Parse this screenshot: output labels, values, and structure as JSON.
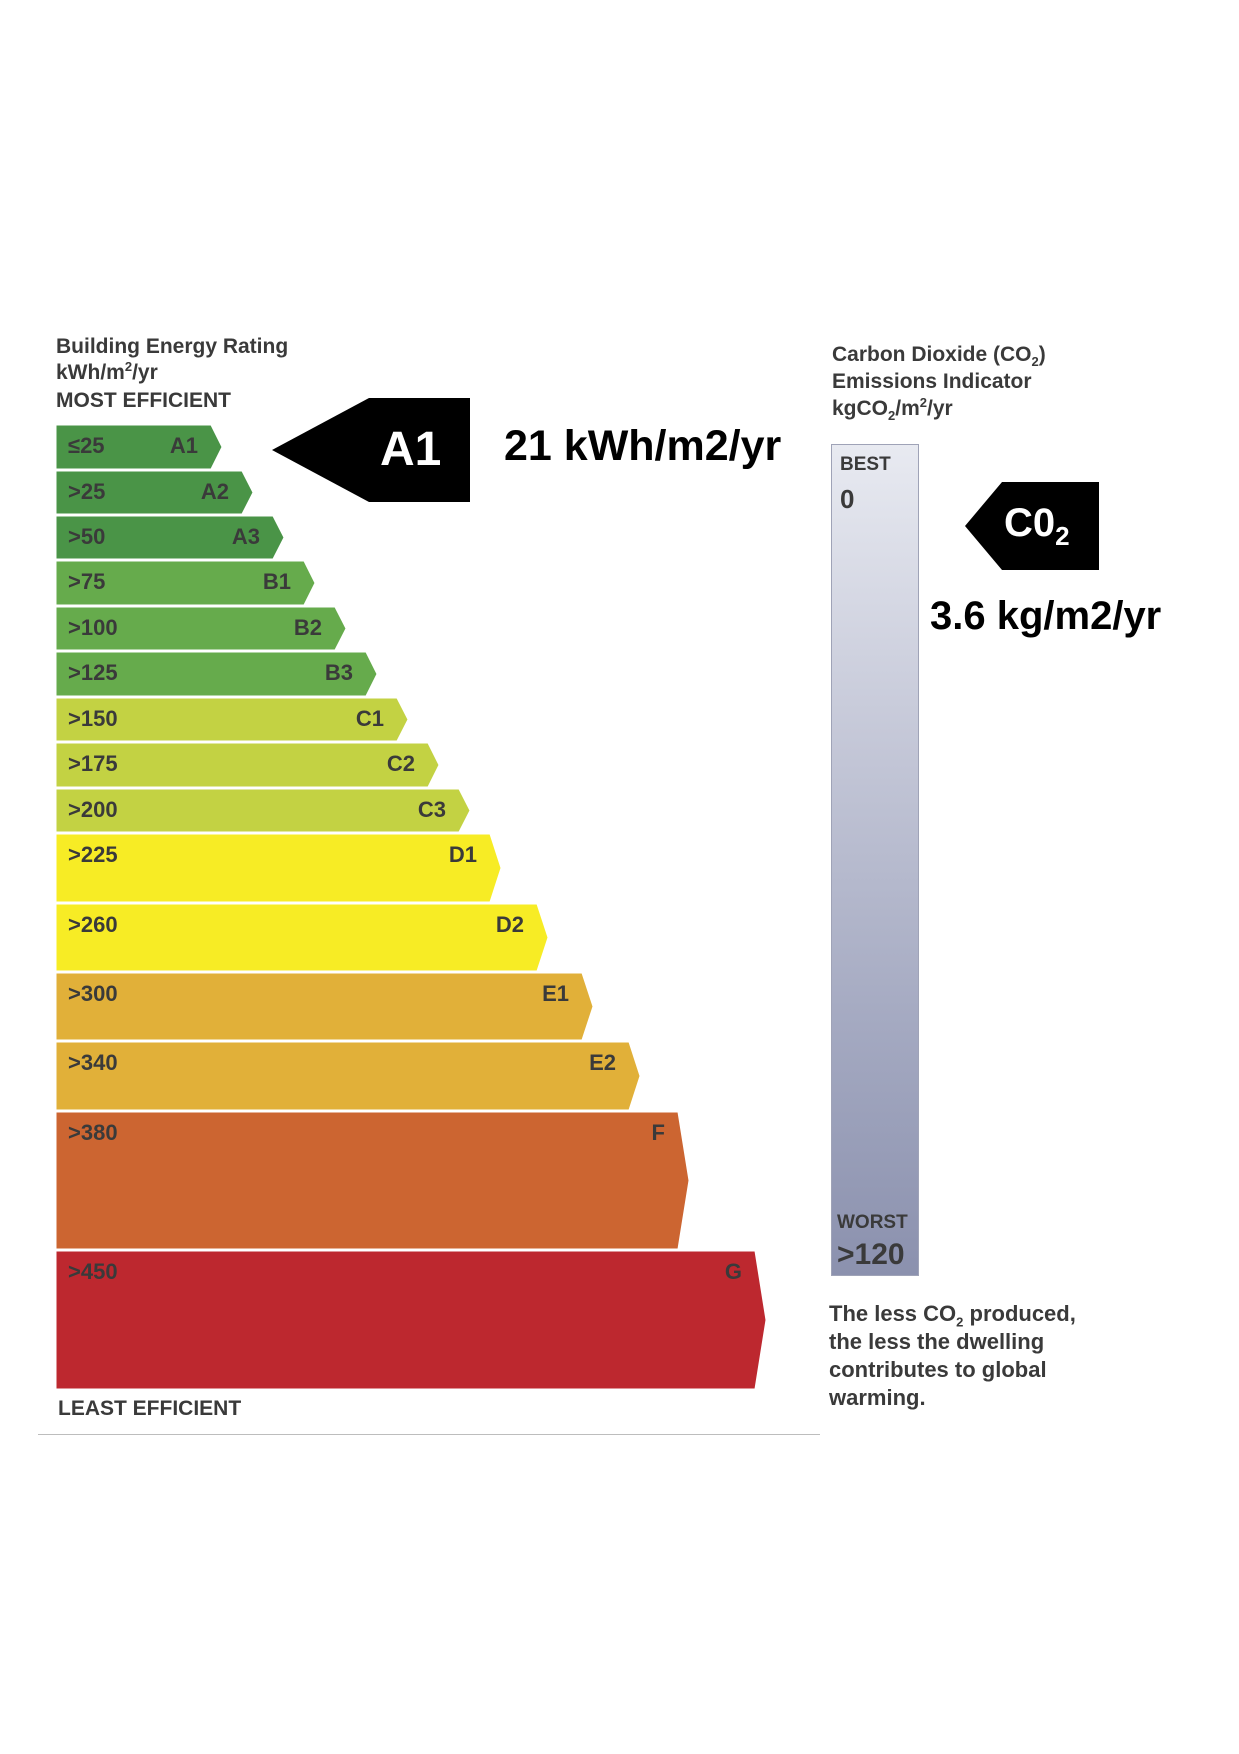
{
  "left_header": {
    "line1": "Building Energy Rating",
    "unit_base": "kWh/m",
    "unit_sup": "2",
    "unit_tail": "/yr",
    "line3": "MOST EFFICIENT"
  },
  "footer_left": "LEAST EFFICIENT",
  "rating_marker": {
    "label": "A1",
    "value_text": "21 kWh/m2/yr"
  },
  "right_header": {
    "line1_pre": "Carbon Dioxide (CO",
    "line1_sub": "2",
    "line1_post": ")",
    "line2": "Emissions Indicator",
    "line3_pre": "kgCO",
    "line3_sub": "2",
    "line3_mid": "/m",
    "line3_sup": "2",
    "line3_post": "/yr"
  },
  "co2_scale": {
    "best_label": "BEST",
    "best_value": "0",
    "worst_label": "WORST",
    "worst_value": ">120"
  },
  "co2_marker": {
    "label": "C0",
    "label_sub": "2",
    "value_text": "3.6 kg/m2/yr"
  },
  "note": {
    "line1_pre": "The less CO",
    "line1_sub": "2",
    "line1_post": " produced,",
    "line2": "the less the dwelling",
    "line3": "contributes to global",
    "line4": "warming."
  },
  "chart_data": {
    "type": "bar",
    "categories": [
      "A1",
      "A2",
      "A3",
      "B1",
      "B2",
      "B3",
      "C1",
      "C2",
      "C3",
      "D1",
      "D2",
      "E1",
      "E2",
      "F",
      "G"
    ],
    "thresholds": [
      "≤25",
      ">25",
      ">50",
      ">75",
      ">100",
      ">125",
      ">150",
      ">175",
      ">200",
      ">225",
      ">260",
      ">300",
      ">340",
      ">380",
      ">450"
    ],
    "colors": [
      "#4a9447",
      "#4a9447",
      "#4a9447",
      "#66ab4c",
      "#66ab4c",
      "#66ab4c",
      "#c3d243",
      "#c3d243",
      "#c3d243",
      "#f7ec25",
      "#f7ec25",
      "#e1b039",
      "#e1b039",
      "#cc6531",
      "#bd282f"
    ],
    "highlight": "A1"
  }
}
